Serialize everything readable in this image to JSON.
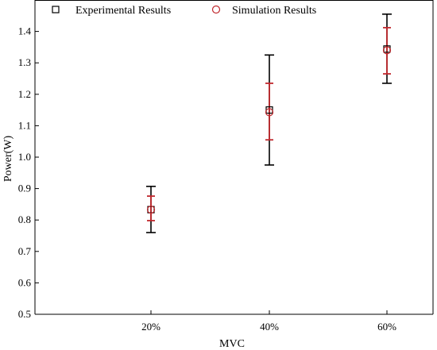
{
  "chart_data": {
    "type": "scatter",
    "title": "",
    "xlabel": "MVC",
    "ylabel": "Power(W)",
    "categories": [
      "20%",
      "40%",
      "60%"
    ],
    "ylim": [
      0.5,
      1.5
    ],
    "yticks": [
      "0.5",
      "0.6",
      "0.7",
      "0.8",
      "0.9",
      "1.0",
      "1.1",
      "1.2",
      "1.3",
      "1.4"
    ],
    "grid": false,
    "legend_position": "top",
    "series": [
      {
        "name": "Experimental Results",
        "marker": "square",
        "color": "#000000",
        "values": [
          0.833,
          1.15,
          1.344
        ],
        "error_low": [
          0.76,
          0.975,
          1.235
        ],
        "error_high": [
          0.907,
          1.325,
          1.455
        ]
      },
      {
        "name": "Simulation Results",
        "marker": "circle",
        "color": "#c0282d",
        "values": [
          0.833,
          1.143,
          1.34
        ],
        "error_low": [
          0.798,
          1.055,
          1.265
        ],
        "error_high": [
          0.876,
          1.235,
          1.412
        ]
      }
    ]
  }
}
